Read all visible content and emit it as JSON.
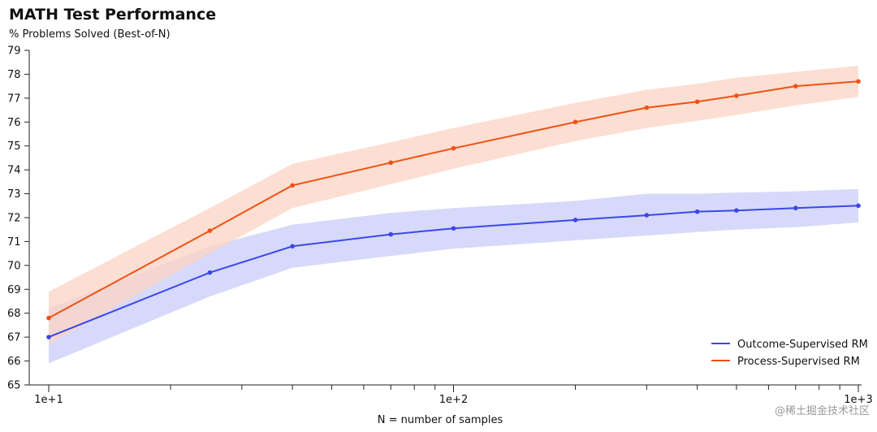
{
  "chart_data": {
    "type": "line",
    "title": "MATH Test Performance",
    "subtitle": "% Problems Solved (Best-of-N)",
    "xlabel": "N = number of samples",
    "x_scale": "log",
    "xlim": [
      10,
      1000
    ],
    "ylim": [
      65,
      79
    ],
    "y_ticks": [
      65,
      66,
      67,
      68,
      69,
      70,
      71,
      72,
      73,
      74,
      75,
      76,
      77,
      78,
      79
    ],
    "x_tick_labels": [
      {
        "value": 10,
        "label": "1e+1"
      },
      {
        "value": 100,
        "label": "1e+2"
      },
      {
        "value": 1000,
        "label": "1e+3"
      }
    ],
    "x_minor_ticks": [
      20,
      30,
      40,
      50,
      60,
      70,
      80,
      90,
      200,
      300,
      400,
      500,
      600,
      700,
      800,
      900
    ],
    "legend_position": "bottom-right",
    "grid": false,
    "series": [
      {
        "name": "Outcome-Supervised RM",
        "color": "#3d46e8",
        "band_color": "#c8ccf8",
        "x": [
          10,
          25,
          40,
          70,
          100,
          200,
          300,
          400,
          500,
          700,
          1000
        ],
        "y": [
          67.0,
          69.7,
          70.8,
          71.3,
          71.55,
          71.9,
          72.1,
          72.25,
          72.3,
          72.4,
          72.5
        ],
        "lower": [
          65.9,
          68.7,
          69.9,
          70.4,
          70.7,
          71.05,
          71.25,
          71.4,
          71.5,
          71.6,
          71.8
        ],
        "upper": [
          68.2,
          70.8,
          71.7,
          72.2,
          72.4,
          72.7,
          73.0,
          73.0,
          73.05,
          73.1,
          73.2
        ]
      },
      {
        "name": "Process-Supervised RM",
        "color": "#ee5214",
        "band_color": "#fcd3c3",
        "x": [
          10,
          25,
          40,
          70,
          100,
          200,
          300,
          400,
          500,
          700,
          1000
        ],
        "y": [
          67.8,
          71.45,
          73.35,
          74.3,
          74.9,
          76.0,
          76.6,
          76.85,
          77.1,
          77.5,
          77.7
        ],
        "lower": [
          66.7,
          70.5,
          72.4,
          73.4,
          74.05,
          75.2,
          75.75,
          76.05,
          76.3,
          76.7,
          77.05
        ],
        "upper": [
          68.9,
          72.4,
          74.25,
          75.15,
          75.75,
          76.8,
          77.35,
          77.6,
          77.85,
          78.1,
          78.35
        ]
      }
    ]
  },
  "watermark": "@稀土掘金技术社区"
}
